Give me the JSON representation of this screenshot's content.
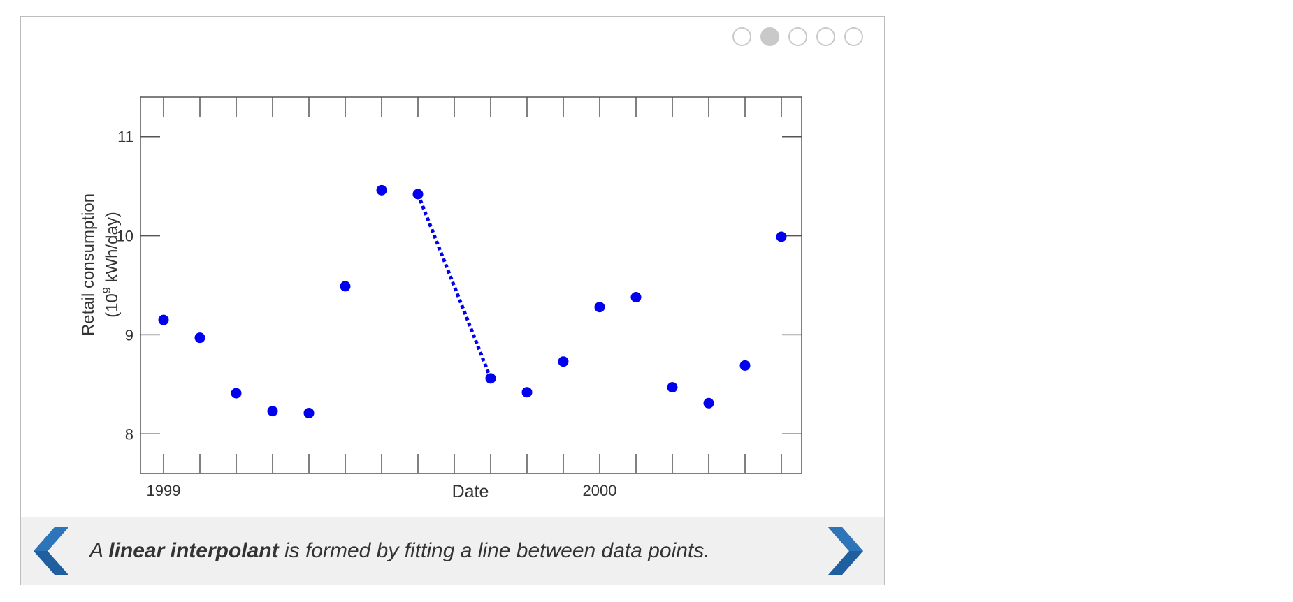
{
  "slideshow": {
    "slide_count": 5,
    "active_index": 1,
    "caption": {
      "prefix": "A ",
      "bold": "linear interpolant",
      "suffix": " is formed by fitting a line between data points."
    },
    "nav_prev_icon": "chevron-left-icon",
    "nav_next_icon": "chevron-right-icon",
    "colors": {
      "nav": "#1f5fa0",
      "dot_border": "#c9c9c9",
      "dot_active": "#c9c9c9",
      "caption_bg": "#f0f0f0"
    }
  },
  "chart_data": {
    "type": "scatter",
    "title": "",
    "xlabel": "Date",
    "ylabel_line1": "Retail consumption",
    "ylabel_line2_prefix": "(10",
    "ylabel_line2_sup": "9",
    "ylabel_line2_suffix": " kWh/day)",
    "x_ticks": [
      "1999",
      "2000"
    ],
    "y_ticks": [
      "8",
      "9",
      "10",
      "11"
    ],
    "ylim": [
      7.6,
      11.4
    ],
    "grid": false,
    "point_color": "#0000ee",
    "points": [
      {
        "x": "1999-01",
        "y": 9.15
      },
      {
        "x": "1999-02",
        "y": 8.97
      },
      {
        "x": "1999-03",
        "y": 8.41
      },
      {
        "x": "1999-04",
        "y": 8.23
      },
      {
        "x": "1999-05",
        "y": 8.21
      },
      {
        "x": "1999-06",
        "y": 9.49
      },
      {
        "x": "1999-07",
        "y": 10.46
      },
      {
        "x": "1999-08",
        "y": 10.42
      },
      {
        "x": "1999-10",
        "y": 8.56
      },
      {
        "x": "1999-11",
        "y": 8.42
      },
      {
        "x": "1999-12",
        "y": 8.73
      },
      {
        "x": "2000-01",
        "y": 9.28
      },
      {
        "x": "2000-02",
        "y": 9.38
      },
      {
        "x": "2000-03",
        "y": 8.47
      },
      {
        "x": "2000-04",
        "y": 8.31
      },
      {
        "x": "2000-05",
        "y": 8.69
      },
      {
        "x": "2000-06",
        "y": 9.99
      }
    ],
    "interpolant": {
      "style": "dotted",
      "from": {
        "x": "1999-08",
        "y": 10.42
      },
      "to": {
        "x": "1999-10",
        "y": 8.56
      }
    }
  }
}
